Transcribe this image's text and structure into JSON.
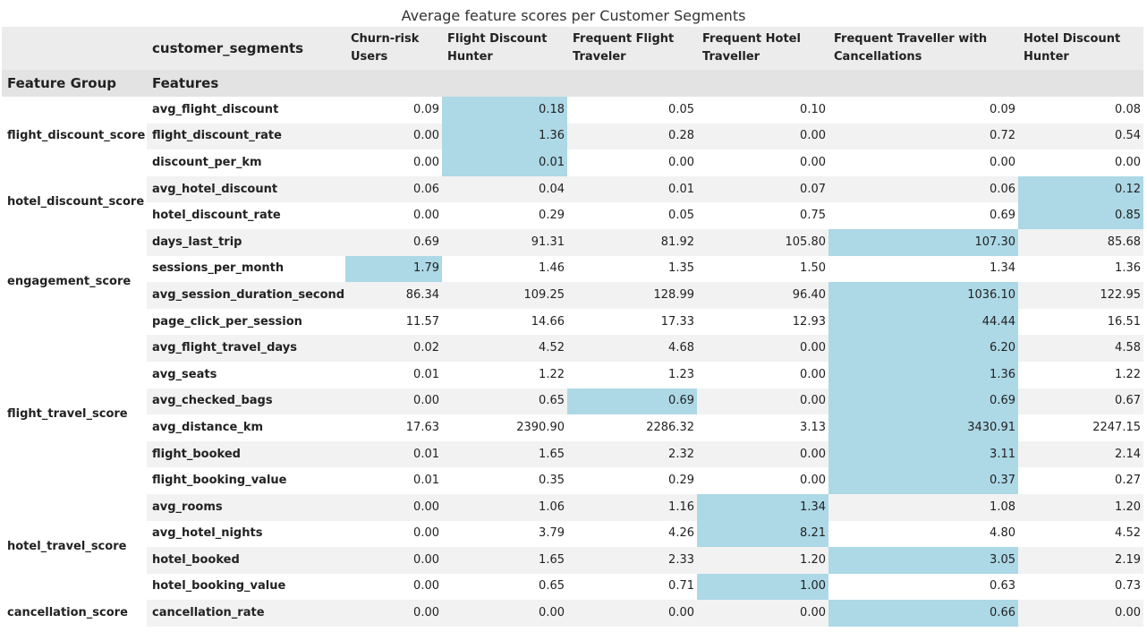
{
  "chart_data": {
    "type": "table",
    "title": "Average feature scores per Customer Segments",
    "columns_header": "customer_segments",
    "index_headers": [
      "Feature Group",
      "Features"
    ],
    "highlight_color": "#add8e6",
    "segments": [
      "Churn-risk Users",
      "Flight Discount Hunter",
      "Frequent Flight Traveler",
      "Frequent Hotel Traveller",
      "Frequent Traveller with Cancellations",
      "Hotel Discount Hunter"
    ],
    "groups": [
      {
        "name": "flight_discount_score",
        "rows": [
          {
            "feature": "avg_flight_discount",
            "values": [
              "0.09",
              "0.18",
              "0.05",
              "0.10",
              "0.09",
              "0.08"
            ],
            "highlight": 1
          },
          {
            "feature": "flight_discount_rate",
            "values": [
              "0.00",
              "1.36",
              "0.28",
              "0.00",
              "0.72",
              "0.54"
            ],
            "highlight": 1
          },
          {
            "feature": "discount_per_km",
            "values": [
              "0.00",
              "0.01",
              "0.00",
              "0.00",
              "0.00",
              "0.00"
            ],
            "highlight": 1
          }
        ]
      },
      {
        "name": "hotel_discount_score",
        "rows": [
          {
            "feature": "avg_hotel_discount",
            "values": [
              "0.06",
              "0.04",
              "0.01",
              "0.07",
              "0.06",
              "0.12"
            ],
            "highlight": 5
          },
          {
            "feature": "hotel_discount_rate",
            "values": [
              "0.00",
              "0.29",
              "0.05",
              "0.75",
              "0.69",
              "0.85"
            ],
            "highlight": 5
          }
        ]
      },
      {
        "name": "engagement_score",
        "rows": [
          {
            "feature": "days_last_trip",
            "values": [
              "0.69",
              "91.31",
              "81.92",
              "105.80",
              "107.30",
              "85.68"
            ],
            "highlight": 4
          },
          {
            "feature": "sessions_per_month",
            "values": [
              "1.79",
              "1.46",
              "1.35",
              "1.50",
              "1.34",
              "1.36"
            ],
            "highlight": 0
          },
          {
            "feature": "avg_session_duration_seconds",
            "values": [
              "86.34",
              "109.25",
              "128.99",
              "96.40",
              "1036.10",
              "122.95"
            ],
            "highlight": 4
          },
          {
            "feature": "page_click_per_session",
            "values": [
              "11.57",
              "14.66",
              "17.33",
              "12.93",
              "44.44",
              "16.51"
            ],
            "highlight": 4
          }
        ]
      },
      {
        "name": "flight_travel_score",
        "rows": [
          {
            "feature": "avg_flight_travel_days",
            "values": [
              "0.02",
              "4.52",
              "4.68",
              "0.00",
              "6.20",
              "4.58"
            ],
            "highlight": 4
          },
          {
            "feature": "avg_seats",
            "values": [
              "0.01",
              "1.22",
              "1.23",
              "0.00",
              "1.36",
              "1.22"
            ],
            "highlight": 4
          },
          {
            "feature": "avg_checked_bags",
            "values": [
              "0.00",
              "0.65",
              "0.69",
              "0.00",
              "0.69",
              "0.67"
            ],
            "highlight": [
              2,
              4
            ]
          },
          {
            "feature": "avg_distance_km",
            "values": [
              "17.63",
              "2390.90",
              "2286.32",
              "3.13",
              "3430.91",
              "2247.15"
            ],
            "highlight": 4
          },
          {
            "feature": "flight_booked",
            "values": [
              "0.01",
              "1.65",
              "2.32",
              "0.00",
              "3.11",
              "2.14"
            ],
            "highlight": 4
          },
          {
            "feature": "flight_booking_value",
            "values": [
              "0.01",
              "0.35",
              "0.29",
              "0.00",
              "0.37",
              "0.27"
            ],
            "highlight": 4
          }
        ]
      },
      {
        "name": "hotel_travel_score",
        "rows": [
          {
            "feature": "avg_rooms",
            "values": [
              "0.00",
              "1.06",
              "1.16",
              "1.34",
              "1.08",
              "1.20"
            ],
            "highlight": 3
          },
          {
            "feature": "avg_hotel_nights",
            "values": [
              "0.00",
              "3.79",
              "4.26",
              "8.21",
              "4.80",
              "4.52"
            ],
            "highlight": 3
          },
          {
            "feature": "hotel_booked",
            "values": [
              "0.00",
              "1.65",
              "2.33",
              "1.20",
              "3.05",
              "2.19"
            ],
            "highlight": 4
          },
          {
            "feature": "hotel_booking_value",
            "values": [
              "0.00",
              "0.65",
              "0.71",
              "1.00",
              "0.63",
              "0.73"
            ],
            "highlight": 3
          }
        ]
      },
      {
        "name": "cancellation_score",
        "rows": [
          {
            "feature": "cancellation_rate",
            "values": [
              "0.00",
              "0.00",
              "0.00",
              "0.00",
              "0.66",
              "0.00"
            ],
            "highlight": 4
          }
        ]
      }
    ]
  }
}
